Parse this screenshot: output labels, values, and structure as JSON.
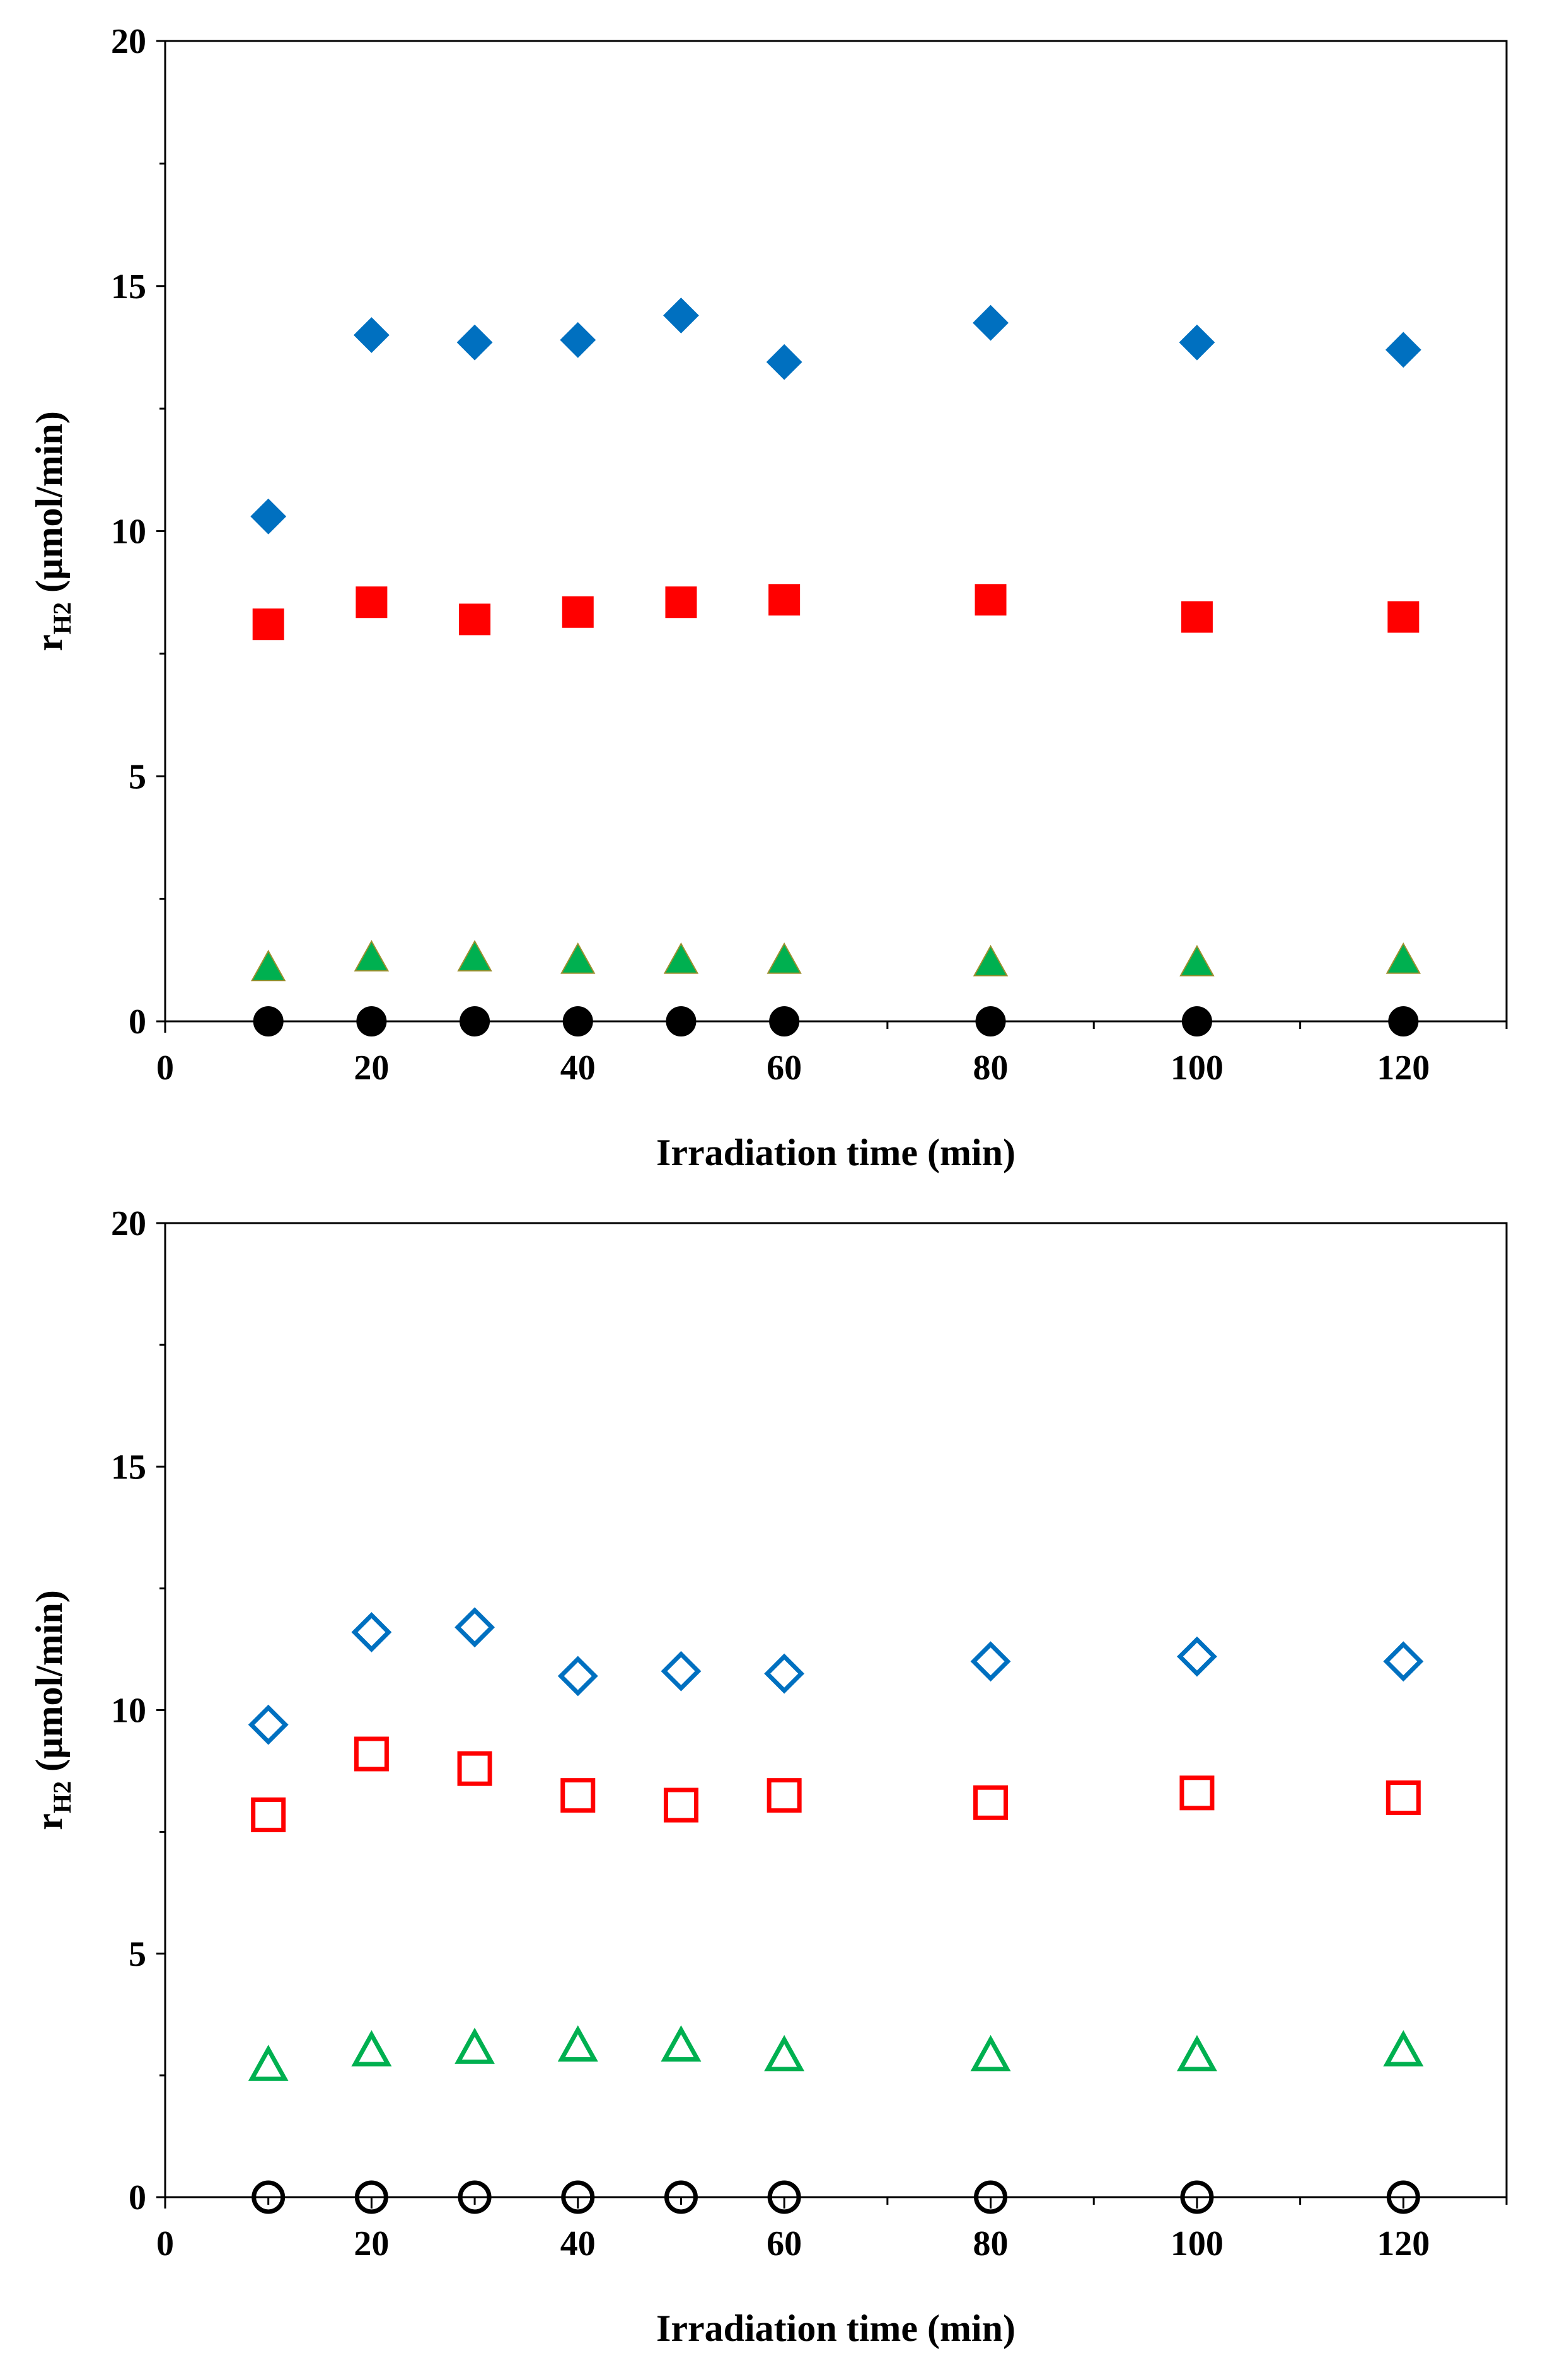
{
  "chart_data": [
    {
      "type": "scatter",
      "panel": "top",
      "xlabel": "Irradiation time (min)",
      "ylabel_main": "r",
      "ylabel_sub": "H2",
      "ylabel_unit": " (µmol/min)",
      "xlim": [
        0,
        130
      ],
      "ylim": [
        0,
        20
      ],
      "xticks": [
        0,
        20,
        40,
        60,
        80,
        100,
        120
      ],
      "yticks": [
        0,
        5,
        10,
        15,
        20
      ],
      "x": [
        10,
        20,
        30,
        40,
        50,
        60,
        80,
        100,
        120
      ],
      "series": [
        {
          "name": "diamond",
          "marker": "diamond",
          "filled": true,
          "color": "#0070C0",
          "values": [
            10.3,
            14.0,
            13.85,
            13.9,
            14.4,
            13.45,
            14.25,
            13.85,
            13.7
          ]
        },
        {
          "name": "square",
          "marker": "square",
          "filled": true,
          "color": "#FF0000",
          "values": [
            8.1,
            8.55,
            8.2,
            8.35,
            8.55,
            8.6,
            8.6,
            8.25,
            8.25
          ]
        },
        {
          "name": "triangle",
          "marker": "triangle",
          "filled": true,
          "color": "#00B050",
          "stroke": "#9C8F2E",
          "values": [
            1.1,
            1.3,
            1.3,
            1.25,
            1.25,
            1.25,
            1.2,
            1.2,
            1.25
          ]
        },
        {
          "name": "circle",
          "marker": "circle",
          "filled": true,
          "color": "#000000",
          "values": [
            0,
            0,
            0,
            0,
            0,
            0,
            0,
            0,
            0
          ]
        }
      ]
    },
    {
      "type": "scatter",
      "panel": "bottom",
      "xlabel": "Irradiation time (min)",
      "ylabel_main": "r",
      "ylabel_sub": "H2",
      "ylabel_unit": " (µmol/min)",
      "xlim": [
        0,
        130
      ],
      "ylim": [
        0,
        20
      ],
      "xticks": [
        0,
        20,
        40,
        60,
        80,
        100,
        120
      ],
      "yticks": [
        0,
        5,
        10,
        15,
        20
      ],
      "x": [
        10,
        20,
        30,
        40,
        50,
        60,
        80,
        100,
        120
      ],
      "series": [
        {
          "name": "diamond",
          "marker": "diamond",
          "filled": false,
          "color": "#0070C0",
          "values": [
            9.7,
            11.6,
            11.7,
            10.7,
            10.8,
            10.75,
            11.0,
            11.1,
            11.0
          ]
        },
        {
          "name": "square",
          "marker": "square",
          "filled": false,
          "color": "#FF0000",
          "values": [
            7.85,
            9.1,
            8.8,
            8.25,
            8.05,
            8.25,
            8.1,
            8.3,
            8.2
          ]
        },
        {
          "name": "triangle",
          "marker": "triangle",
          "filled": false,
          "color": "#00B050",
          "values": [
            2.7,
            3.0,
            3.05,
            3.1,
            3.1,
            2.9,
            2.9,
            2.9,
            3.0
          ]
        },
        {
          "name": "circle",
          "marker": "circle",
          "filled": false,
          "color": "#000000",
          "values": [
            0,
            0,
            0,
            0,
            0,
            0,
            0,
            0,
            0
          ]
        }
      ]
    }
  ]
}
